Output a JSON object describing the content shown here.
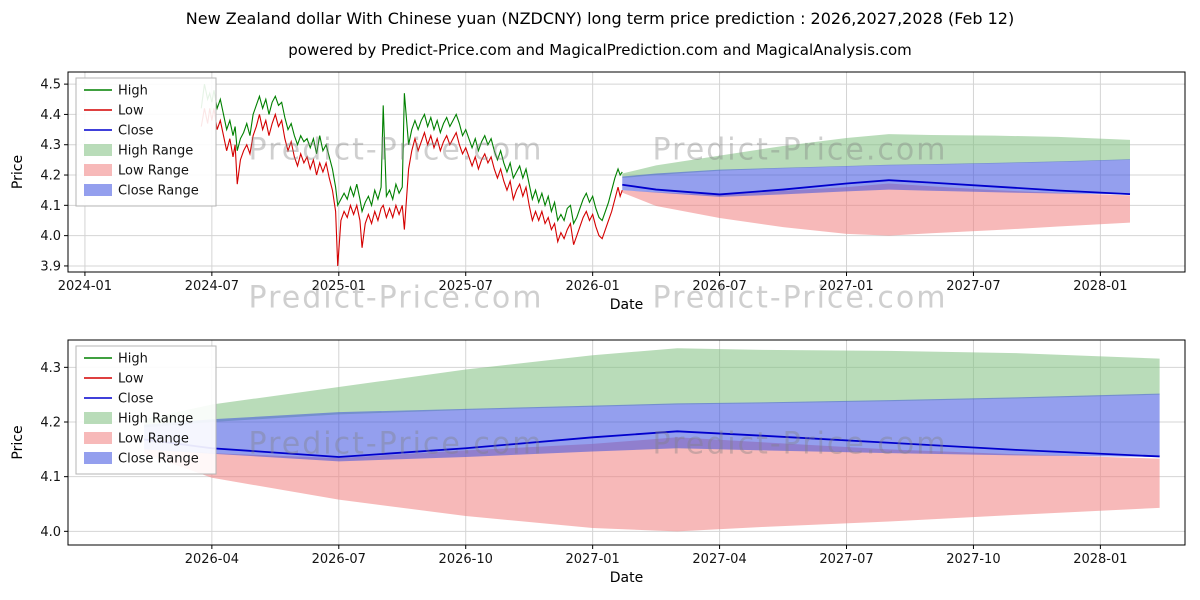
{
  "page": {
    "title": "New Zealand dollar With Chinese yuan (NZDCNY) long term price prediction : 2026,2027,2028 (Feb 12)",
    "subtitle": "powered by Predict-Price.com and MagicalPrediction.com and MagicalAnalysis.com",
    "watermark": "Predict-Price.com"
  },
  "colors": {
    "grid": "#d4d4d4",
    "spine": "#000000",
    "high_line": "#008000",
    "low_line": "#d40000",
    "close_line": "#0000cd",
    "high_band": "#7fbf7f",
    "low_band": "#f08080",
    "close_band": "#3c50e0",
    "band_opacity": 0.55,
    "watermark": "#808080"
  },
  "chart_data": [
    {
      "type": "line",
      "name": "history-and-forecast",
      "xlabel": "Date",
      "ylabel": "Price",
      "x_unit": "months since 2024-01",
      "xlim": [
        -0.8,
        52
      ],
      "ylim": [
        3.88,
        4.54
      ],
      "grid": true,
      "legend_position": "upper-left",
      "xticks": [
        {
          "v": 0,
          "label": "2024-01"
        },
        {
          "v": 6,
          "label": "2024-07"
        },
        {
          "v": 12,
          "label": "2025-01"
        },
        {
          "v": 18,
          "label": "2025-07"
        },
        {
          "v": 24,
          "label": "2026-01"
        },
        {
          "v": 30,
          "label": "2026-07"
        },
        {
          "v": 36,
          "label": "2027-01"
        },
        {
          "v": 42,
          "label": "2027-07"
        },
        {
          "v": 48,
          "label": "2028-01"
        }
      ],
      "yticks": [
        3.9,
        4.0,
        4.1,
        4.2,
        4.3,
        4.4,
        4.5
      ],
      "legend": [
        {
          "label": "High",
          "swatch": "line",
          "series": "high"
        },
        {
          "label": "Low",
          "swatch": "line",
          "series": "low"
        },
        {
          "label": "Close",
          "swatch": "line",
          "series": "close"
        },
        {
          "label": "High Range",
          "swatch": "patch",
          "series": "high_band"
        },
        {
          "label": "Low Range",
          "swatch": "patch",
          "series": "low_band"
        },
        {
          "label": "Close Range",
          "swatch": "patch",
          "series": "close_band"
        }
      ],
      "history": {
        "columns": [
          "month",
          "low",
          "high"
        ],
        "points": [
          [
            5.5,
            4.36,
            4.42
          ],
          [
            5.65,
            4.42,
            4.5
          ],
          [
            5.8,
            4.37,
            4.45
          ],
          [
            5.9,
            4.42,
            4.47
          ],
          [
            6.0,
            4.38,
            4.44
          ],
          [
            6.1,
            4.42,
            4.48
          ],
          [
            6.25,
            4.35,
            4.42
          ],
          [
            6.4,
            4.38,
            4.45
          ],
          [
            6.55,
            4.33,
            4.4
          ],
          [
            6.7,
            4.28,
            4.35
          ],
          [
            6.85,
            4.32,
            4.38
          ],
          [
            7.0,
            4.26,
            4.33
          ],
          [
            7.1,
            4.3,
            4.36
          ],
          [
            7.2,
            4.17,
            4.28
          ],
          [
            7.35,
            4.25,
            4.32
          ],
          [
            7.5,
            4.28,
            4.34
          ],
          [
            7.65,
            4.3,
            4.37
          ],
          [
            7.8,
            4.27,
            4.33
          ],
          [
            7.95,
            4.33,
            4.4
          ],
          [
            8.1,
            4.36,
            4.43
          ],
          [
            8.25,
            4.4,
            4.46
          ],
          [
            8.4,
            4.35,
            4.42
          ],
          [
            8.55,
            4.38,
            4.45
          ],
          [
            8.7,
            4.33,
            4.4
          ],
          [
            8.85,
            4.37,
            4.44
          ],
          [
            9.0,
            4.4,
            4.46
          ],
          [
            9.15,
            4.36,
            4.43
          ],
          [
            9.3,
            4.38,
            4.44
          ],
          [
            9.45,
            4.32,
            4.39
          ],
          [
            9.6,
            4.28,
            4.35
          ],
          [
            9.75,
            4.31,
            4.37
          ],
          [
            9.9,
            4.26,
            4.33
          ],
          [
            10.05,
            4.23,
            4.3
          ],
          [
            10.2,
            4.27,
            4.33
          ],
          [
            10.35,
            4.24,
            4.31
          ],
          [
            10.5,
            4.26,
            4.32
          ],
          [
            10.65,
            4.22,
            4.29
          ],
          [
            10.8,
            4.25,
            4.32
          ],
          [
            10.95,
            4.2,
            4.27
          ],
          [
            11.1,
            4.24,
            4.33
          ],
          [
            11.25,
            4.21,
            4.28
          ],
          [
            11.4,
            4.24,
            4.3
          ],
          [
            11.55,
            4.19,
            4.26
          ],
          [
            11.7,
            4.15,
            4.22
          ],
          [
            11.85,
            4.08,
            4.16
          ],
          [
            11.95,
            3.9,
            4.1
          ],
          [
            12.1,
            4.05,
            4.12
          ],
          [
            12.25,
            4.08,
            4.14
          ],
          [
            12.4,
            4.06,
            4.12
          ],
          [
            12.55,
            4.1,
            4.16
          ],
          [
            12.7,
            4.07,
            4.13
          ],
          [
            12.85,
            4.1,
            4.17
          ],
          [
            13.0,
            4.05,
            4.12
          ],
          [
            13.1,
            3.96,
            4.08
          ],
          [
            13.25,
            4.04,
            4.11
          ],
          [
            13.4,
            4.07,
            4.13
          ],
          [
            13.55,
            4.04,
            4.1
          ],
          [
            13.7,
            4.08,
            4.15
          ],
          [
            13.85,
            4.05,
            4.12
          ],
          [
            14.0,
            4.09,
            4.16
          ],
          [
            14.1,
            4.1,
            4.43
          ],
          [
            14.25,
            4.06,
            4.13
          ],
          [
            14.4,
            4.09,
            4.15
          ],
          [
            14.55,
            4.06,
            4.12
          ],
          [
            14.7,
            4.1,
            4.17
          ],
          [
            14.85,
            4.07,
            4.14
          ],
          [
            15.0,
            4.1,
            4.16
          ],
          [
            15.1,
            4.02,
            4.47
          ],
          [
            15.3,
            4.22,
            4.3
          ],
          [
            15.45,
            4.28,
            4.35
          ],
          [
            15.6,
            4.32,
            4.38
          ],
          [
            15.75,
            4.28,
            4.35
          ],
          [
            15.9,
            4.31,
            4.38
          ],
          [
            16.05,
            4.34,
            4.4
          ],
          [
            16.2,
            4.3,
            4.36
          ],
          [
            16.35,
            4.33,
            4.39
          ],
          [
            16.5,
            4.29,
            4.35
          ],
          [
            16.65,
            4.32,
            4.38
          ],
          [
            16.8,
            4.28,
            4.34
          ],
          [
            16.95,
            4.31,
            4.37
          ],
          [
            17.1,
            4.33,
            4.39
          ],
          [
            17.25,
            4.3,
            4.36
          ],
          [
            17.4,
            4.32,
            4.38
          ],
          [
            17.55,
            4.34,
            4.4
          ],
          [
            17.7,
            4.3,
            4.37
          ],
          [
            17.85,
            4.27,
            4.33
          ],
          [
            18.0,
            4.29,
            4.35
          ],
          [
            18.15,
            4.26,
            4.32
          ],
          [
            18.3,
            4.23,
            4.29
          ],
          [
            18.45,
            4.26,
            4.32
          ],
          [
            18.6,
            4.22,
            4.28
          ],
          [
            18.75,
            4.25,
            4.31
          ],
          [
            18.9,
            4.27,
            4.33
          ],
          [
            19.05,
            4.24,
            4.3
          ],
          [
            19.2,
            4.26,
            4.32
          ],
          [
            19.35,
            4.22,
            4.28
          ],
          [
            19.5,
            4.19,
            4.25
          ],
          [
            19.65,
            4.22,
            4.28
          ],
          [
            19.8,
            4.18,
            4.24
          ],
          [
            19.95,
            4.15,
            4.21
          ],
          [
            20.1,
            4.18,
            4.24
          ],
          [
            20.25,
            4.12,
            4.19
          ],
          [
            20.4,
            4.15,
            4.21
          ],
          [
            20.55,
            4.17,
            4.23
          ],
          [
            20.7,
            4.13,
            4.19
          ],
          [
            20.85,
            4.16,
            4.22
          ],
          [
            21.0,
            4.1,
            4.17
          ],
          [
            21.15,
            4.05,
            4.12
          ],
          [
            21.3,
            4.08,
            4.15
          ],
          [
            21.45,
            4.05,
            4.11
          ],
          [
            21.6,
            4.08,
            4.14
          ],
          [
            21.75,
            4.04,
            4.1
          ],
          [
            21.9,
            4.06,
            4.13
          ],
          [
            22.05,
            4.02,
            4.08
          ],
          [
            22.2,
            4.04,
            4.11
          ],
          [
            22.35,
            3.98,
            4.05
          ],
          [
            22.5,
            4.01,
            4.07
          ],
          [
            22.65,
            3.99,
            4.05
          ],
          [
            22.8,
            4.02,
            4.09
          ],
          [
            22.95,
            4.04,
            4.1
          ],
          [
            23.1,
            3.97,
            4.04
          ],
          [
            23.25,
            4.0,
            4.06
          ],
          [
            23.4,
            4.03,
            4.09
          ],
          [
            23.55,
            4.06,
            4.12
          ],
          [
            23.7,
            4.08,
            4.14
          ],
          [
            23.85,
            4.05,
            4.11
          ],
          [
            24.0,
            4.07,
            4.13
          ],
          [
            24.15,
            4.03,
            4.09
          ],
          [
            24.3,
            4.0,
            4.06
          ],
          [
            24.45,
            3.99,
            4.05
          ],
          [
            24.6,
            4.02,
            4.08
          ],
          [
            24.75,
            4.05,
            4.11
          ],
          [
            24.9,
            4.08,
            4.15
          ],
          [
            25.05,
            4.12,
            4.19
          ],
          [
            25.2,
            4.16,
            4.22
          ],
          [
            25.3,
            4.13,
            4.2
          ],
          [
            25.4,
            4.15,
            4.21
          ]
        ]
      },
      "forecast": {
        "months": [
          25.4,
          27,
          30,
          33,
          36,
          38,
          40,
          43,
          46,
          49.4
        ],
        "high_upper": [
          4.205,
          4.232,
          4.264,
          4.296,
          4.322,
          4.335,
          4.332,
          4.33,
          4.326,
          4.316
        ],
        "high_lower": [
          4.19,
          4.2,
          4.214,
          4.222,
          4.228,
          4.232,
          4.234,
          4.238,
          4.243,
          4.25
        ],
        "close_upper": [
          4.195,
          4.205,
          4.218,
          4.224,
          4.23,
          4.234,
          4.236,
          4.24,
          4.245,
          4.252
        ],
        "close_lower": [
          4.15,
          4.142,
          4.128,
          4.136,
          4.146,
          4.152,
          4.148,
          4.143,
          4.139,
          4.136
        ],
        "close": [
          4.168,
          4.152,
          4.136,
          4.152,
          4.172,
          4.183,
          4.175,
          4.162,
          4.149,
          4.137
        ],
        "low_upper": [
          4.15,
          4.143,
          4.134,
          4.148,
          4.16,
          4.172,
          4.163,
          4.15,
          4.141,
          4.133
        ],
        "low_lower": [
          4.142,
          4.098,
          4.058,
          4.028,
          4.006,
          4.0,
          4.008,
          4.018,
          4.03,
          4.043
        ]
      }
    },
    {
      "type": "line",
      "name": "forecast-zoom",
      "xlabel": "Date",
      "ylabel": "Price",
      "x_unit": "months since 2024-01",
      "xlim": [
        23.6,
        50.0
      ],
      "ylim": [
        3.975,
        4.35
      ],
      "grid": true,
      "legend_position": "upper-left",
      "xticks": [
        {
          "v": 27,
          "label": "2026-04"
        },
        {
          "v": 30,
          "label": "2026-07"
        },
        {
          "v": 33,
          "label": "2026-10"
        },
        {
          "v": 36,
          "label": "2027-01"
        },
        {
          "v": 39,
          "label": "2027-04"
        },
        {
          "v": 42,
          "label": "2027-07"
        },
        {
          "v": 45,
          "label": "2027-10"
        },
        {
          "v": 48,
          "label": "2028-01"
        }
      ],
      "yticks": [
        4.0,
        4.1,
        4.2,
        4.3
      ],
      "legend": [
        {
          "label": "High",
          "swatch": "line",
          "series": "high"
        },
        {
          "label": "Low",
          "swatch": "line",
          "series": "low"
        },
        {
          "label": "Close",
          "swatch": "line",
          "series": "close"
        },
        {
          "label": "High Range",
          "swatch": "patch",
          "series": "high_band"
        },
        {
          "label": "Low Range",
          "swatch": "patch",
          "series": "low_band"
        },
        {
          "label": "Close Range",
          "swatch": "patch",
          "series": "close_band"
        }
      ],
      "forecast": {
        "months": [
          25.4,
          27,
          30,
          33,
          36,
          38,
          40,
          43,
          46,
          49.4
        ],
        "high_upper": [
          4.205,
          4.232,
          4.264,
          4.296,
          4.322,
          4.335,
          4.332,
          4.33,
          4.326,
          4.316
        ],
        "high_lower": [
          4.19,
          4.2,
          4.214,
          4.222,
          4.228,
          4.232,
          4.234,
          4.238,
          4.243,
          4.25
        ],
        "close_upper": [
          4.195,
          4.205,
          4.218,
          4.224,
          4.23,
          4.234,
          4.236,
          4.24,
          4.245,
          4.252
        ],
        "close_lower": [
          4.15,
          4.142,
          4.128,
          4.136,
          4.146,
          4.152,
          4.148,
          4.143,
          4.139,
          4.136
        ],
        "close": [
          4.168,
          4.152,
          4.136,
          4.152,
          4.172,
          4.183,
          4.175,
          4.162,
          4.149,
          4.137
        ],
        "low_upper": [
          4.15,
          4.143,
          4.134,
          4.148,
          4.16,
          4.172,
          4.163,
          4.15,
          4.141,
          4.133
        ],
        "low_lower": [
          4.142,
          4.098,
          4.058,
          4.028,
          4.006,
          4.0,
          4.008,
          4.018,
          4.03,
          4.043
        ]
      }
    }
  ]
}
